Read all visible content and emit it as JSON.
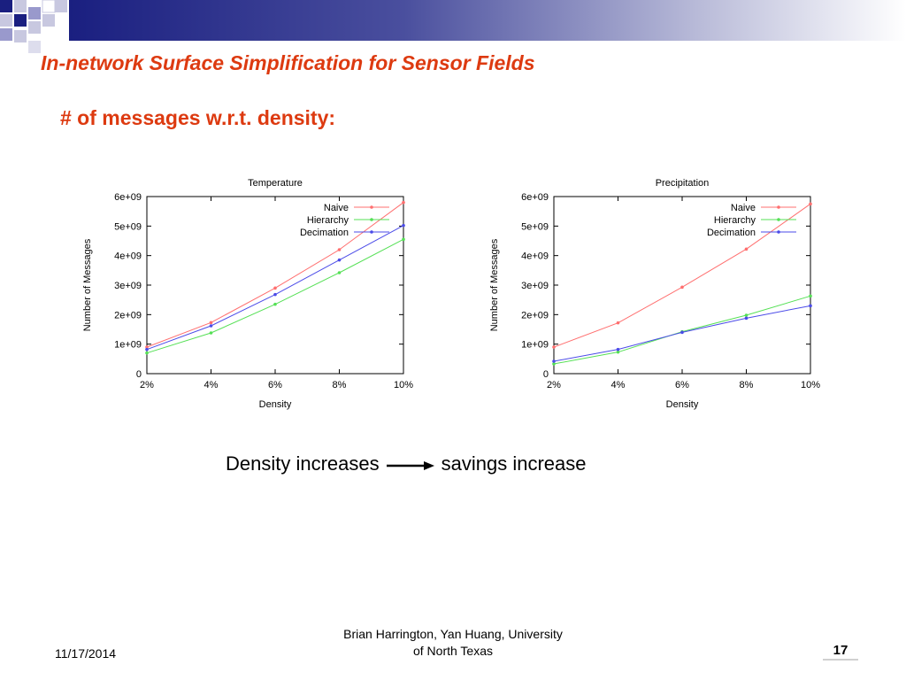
{
  "slide": {
    "title": "In-network Surface Simplification for Sensor Fields",
    "subtitle": "# of messages w.r.t. density:",
    "caption_left": "Density increases",
    "caption_right": "savings increase",
    "footer_date": "11/17/2014",
    "footer_authors_line1": "Brian Harrington, Yan Huang, University",
    "footer_authors_line2": "of North Texas",
    "page_number": "17"
  },
  "colors": {
    "title": "#dd3a10",
    "naive": "#ff6f6f",
    "hierarchy": "#55e055",
    "decimation": "#4b4be8",
    "banner": "#1a1f80"
  },
  "chart_data": [
    {
      "type": "line",
      "title": "Temperature",
      "xlabel": "Density",
      "ylabel": "Number of Messages",
      "categories": [
        "2%",
        "4%",
        "6%",
        "8%",
        "10%"
      ],
      "y_ticks": [
        "0",
        "1e+09",
        "2e+09",
        "3e+09",
        "4e+09",
        "5e+09",
        "6e+09"
      ],
      "ylim": [
        0,
        6000000000
      ],
      "legend_position": "top-right",
      "grid": false,
      "series": [
        {
          "name": "Naive",
          "color": "#ff6f6f",
          "values": [
            900000000,
            1730000000,
            2900000000,
            4200000000,
            5800000000
          ]
        },
        {
          "name": "Hierarchy",
          "color": "#55e055",
          "values": [
            700000000,
            1380000000,
            2350000000,
            3420000000,
            4550000000
          ]
        },
        {
          "name": "Decimation",
          "color": "#4b4be8",
          "values": [
            820000000,
            1620000000,
            2680000000,
            3850000000,
            5020000000
          ]
        }
      ]
    },
    {
      "type": "line",
      "title": "Precipitation",
      "xlabel": "Density",
      "ylabel": "Number of Messages",
      "categories": [
        "2%",
        "4%",
        "6%",
        "8%",
        "10%"
      ],
      "y_ticks": [
        "0",
        "1e+09",
        "2e+09",
        "3e+09",
        "4e+09",
        "5e+09",
        "6e+09"
      ],
      "ylim": [
        0,
        6000000000
      ],
      "legend_position": "top-right",
      "grid": false,
      "series": [
        {
          "name": "Naive",
          "color": "#ff6f6f",
          "values": [
            900000000,
            1720000000,
            2930000000,
            4220000000,
            5750000000
          ]
        },
        {
          "name": "Hierarchy",
          "color": "#55e055",
          "values": [
            330000000,
            730000000,
            1420000000,
            1980000000,
            2630000000
          ]
        },
        {
          "name": "Decimation",
          "color": "#4b4be8",
          "values": [
            420000000,
            820000000,
            1400000000,
            1880000000,
            2300000000
          ]
        }
      ]
    }
  ]
}
